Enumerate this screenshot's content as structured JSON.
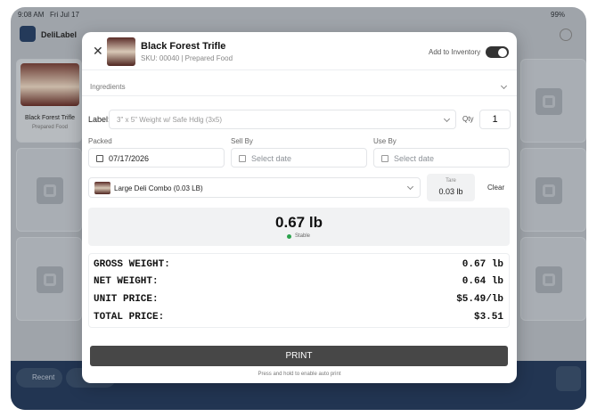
{
  "status_bar": {
    "time": "9:08 AM",
    "date": "Fri Jul 17",
    "battery": "99%"
  },
  "app": {
    "name": "DeliLabel",
    "product_card": {
      "name": "Black Forest Trifle",
      "category": "Prepared Food"
    },
    "bottom_bar": {
      "recent": "Recent"
    }
  },
  "modal": {
    "header": {
      "title": "Black Forest Trifle",
      "subtitle": "SKU: 00040 | Prepared Food",
      "toggle_label": "Add to Inventory"
    },
    "ingredients": "Ingredients",
    "label_row": {
      "label": "Label:",
      "selected": "3\" x 5\" Weight w/ Safe Hdlg (3x5)",
      "qty_label": "Qty",
      "qty": "1"
    },
    "dates": [
      {
        "label": "Packed",
        "value": "07/17/2026"
      },
      {
        "label": "Sell By",
        "value": "Select date"
      },
      {
        "label": "Use By",
        "value": "Select date"
      }
    ],
    "container": {
      "selected": "Large Deli Combo (0.03 LB)",
      "tare_label": "Tare",
      "tare": "0.03 lb",
      "clear": "Clear"
    },
    "scale": {
      "weight": "0.67 lb",
      "status": "Stable"
    },
    "summary": {
      "rows": [
        [
          "GROSS WEIGHT:",
          "0.67 lb"
        ],
        [
          "NET WEIGHT:",
          "0.64 lb"
        ],
        [
          "UNIT PRICE:",
          "$5.49/lb"
        ],
        [
          "TOTAL PRICE:",
          "$3.51"
        ]
      ]
    },
    "print_button": "PRINT",
    "hint": "Press and hold to enable auto print"
  }
}
